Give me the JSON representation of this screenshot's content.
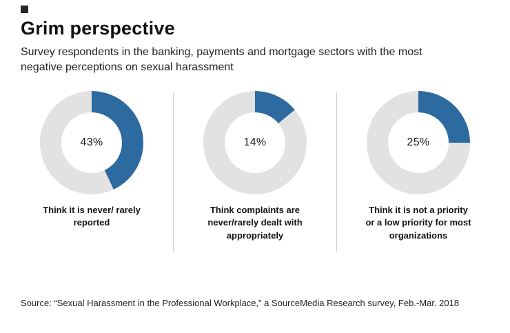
{
  "brand": {
    "mark_color": "#23262d"
  },
  "header": {
    "title": "Grim perspective",
    "subtitle": "Survey respondents in the banking, payments and mortgage sectors with the most negative perceptions on sexual harassment"
  },
  "chart_data": {
    "type": "pie",
    "subtype": "donut",
    "units": "percent",
    "legend_position": "none",
    "colors": {
      "filled": "#2d6a9f",
      "remainder": "#e2e2e2"
    },
    "series": [
      {
        "label": "Think it is never/ rarely reported",
        "value": 43,
        "display": "43%"
      },
      {
        "label": "Think complaints are never/rarely dealt with appropriately",
        "value": 14,
        "display": "14%"
      },
      {
        "label": "Think it is not a priority or a low priority for most organizations",
        "value": 25,
        "display": "25%"
      }
    ]
  },
  "footer": {
    "source": "Source: “Sexual Harassment in the Professional Workplace,” a SourceMedia Research survey, Feb.-Mar. 2018"
  }
}
